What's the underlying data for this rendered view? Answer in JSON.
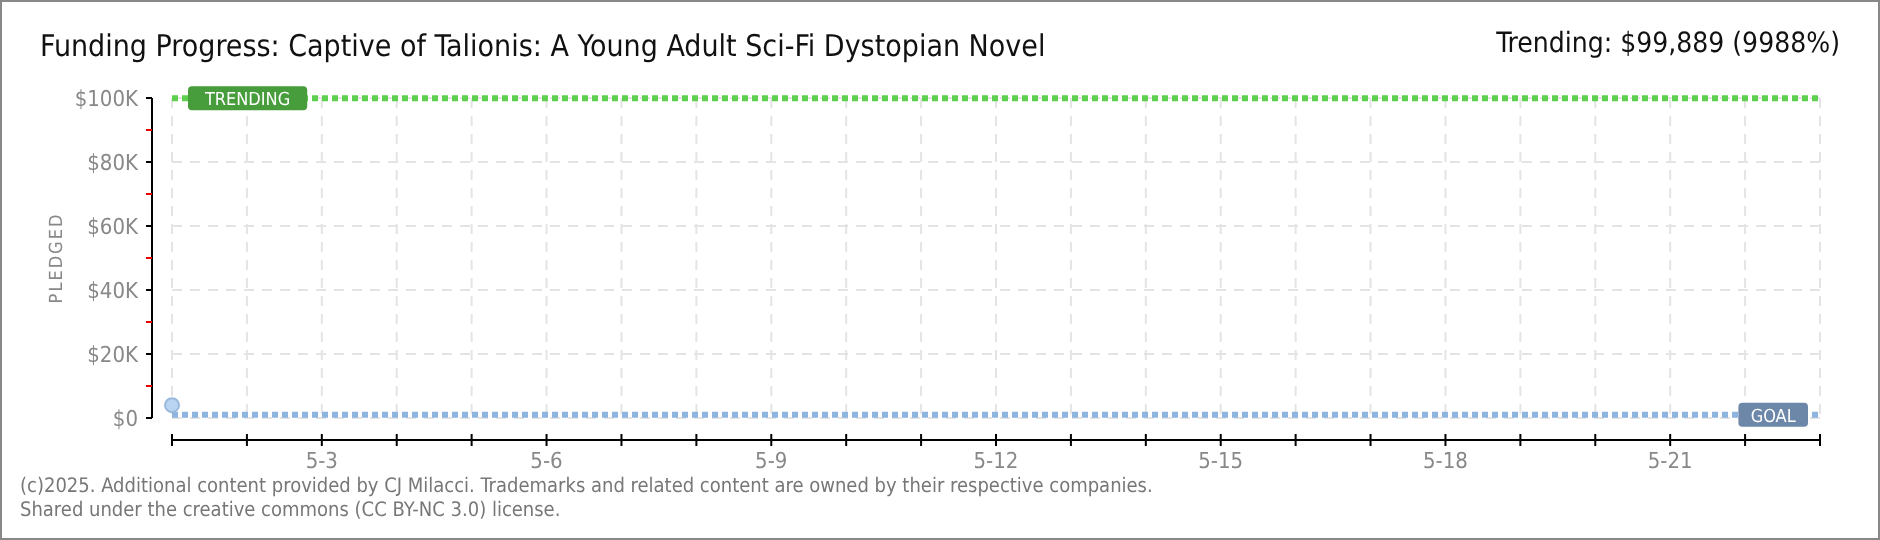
{
  "chart_data": {
    "type": "scatter",
    "title": "Funding Progress: Captive of Talionis: A Young Adult Sci-Fi Dystopian Novel",
    "ylabel": "PLEDGED",
    "x": [
      "--05-01"
    ],
    "series": [
      {
        "color": "#b8d4f2",
        "values": [
          4000
        ]
      }
    ],
    "marker": "circle",
    "xlim": [
      "--05-01",
      "--05-23"
    ],
    "xticks": [
      {
        "value": "--05-01",
        "label": null
      },
      {
        "value": "--05-02",
        "label": null
      },
      {
        "value": "--05-03",
        "label": "5-3"
      },
      {
        "value": "--05-04",
        "label": null
      },
      {
        "value": "--05-05",
        "label": null
      },
      {
        "value": "--05-06",
        "label": "5-6"
      },
      {
        "value": "--05-07",
        "label": null
      },
      {
        "value": "--05-08",
        "label": null
      },
      {
        "value": "--05-09",
        "label": "5-9"
      },
      {
        "value": "--05-10",
        "label": null
      },
      {
        "value": "--05-11",
        "label": null
      },
      {
        "value": "--05-12",
        "label": "5-12"
      },
      {
        "value": "--05-13",
        "label": null
      },
      {
        "value": "--05-14",
        "label": null
      },
      {
        "value": "--05-15",
        "label": "5-15"
      },
      {
        "value": "--05-16",
        "label": null
      },
      {
        "value": "--05-17",
        "label": null
      },
      {
        "value": "--05-18",
        "label": "5-18"
      },
      {
        "value": "--05-19",
        "label": null
      },
      {
        "value": "--05-20",
        "label": null
      },
      {
        "value": "--05-21",
        "label": "5-21"
      },
      {
        "value": "--05-22",
        "label": null
      },
      {
        "value": "--05-23",
        "label": null
      }
    ],
    "ylim": [
      0,
      100000
    ],
    "yticks": [
      {
        "value": 0,
        "label": "$0"
      },
      {
        "value": 10000,
        "label": null
      },
      {
        "value": 20000,
        "label": "$20K"
      },
      {
        "value": 30000,
        "label": null
      },
      {
        "value": 40000,
        "label": "$40K"
      },
      {
        "value": 50000,
        "label": null
      },
      {
        "value": 60000,
        "label": "$60K"
      },
      {
        "value": 70000,
        "label": null
      },
      {
        "value": 80000,
        "label": "$80K"
      },
      {
        "value": 90000,
        "label": null
      },
      {
        "value": 100000,
        "label": "$100K"
      }
    ],
    "grid": true,
    "ref_lines": [
      {
        "axis": "y",
        "value": 99889,
        "label": "TRENDING",
        "color": "#5fcf4f",
        "line_style": "dotted"
      },
      {
        "axis": "y",
        "value": 1000,
        "label": "GOAL",
        "color": "#8fb4e0",
        "line_style": "dotted"
      }
    ],
    "annotations": [
      "Trending: $99,889 (9988%)",
      "(c)2025. Additional content provided by CJ Milacci. Trademarks and related content are owned by their respective companies.",
      "Shared under the creative commons (CC BY-NC 3.0) license."
    ]
  }
}
